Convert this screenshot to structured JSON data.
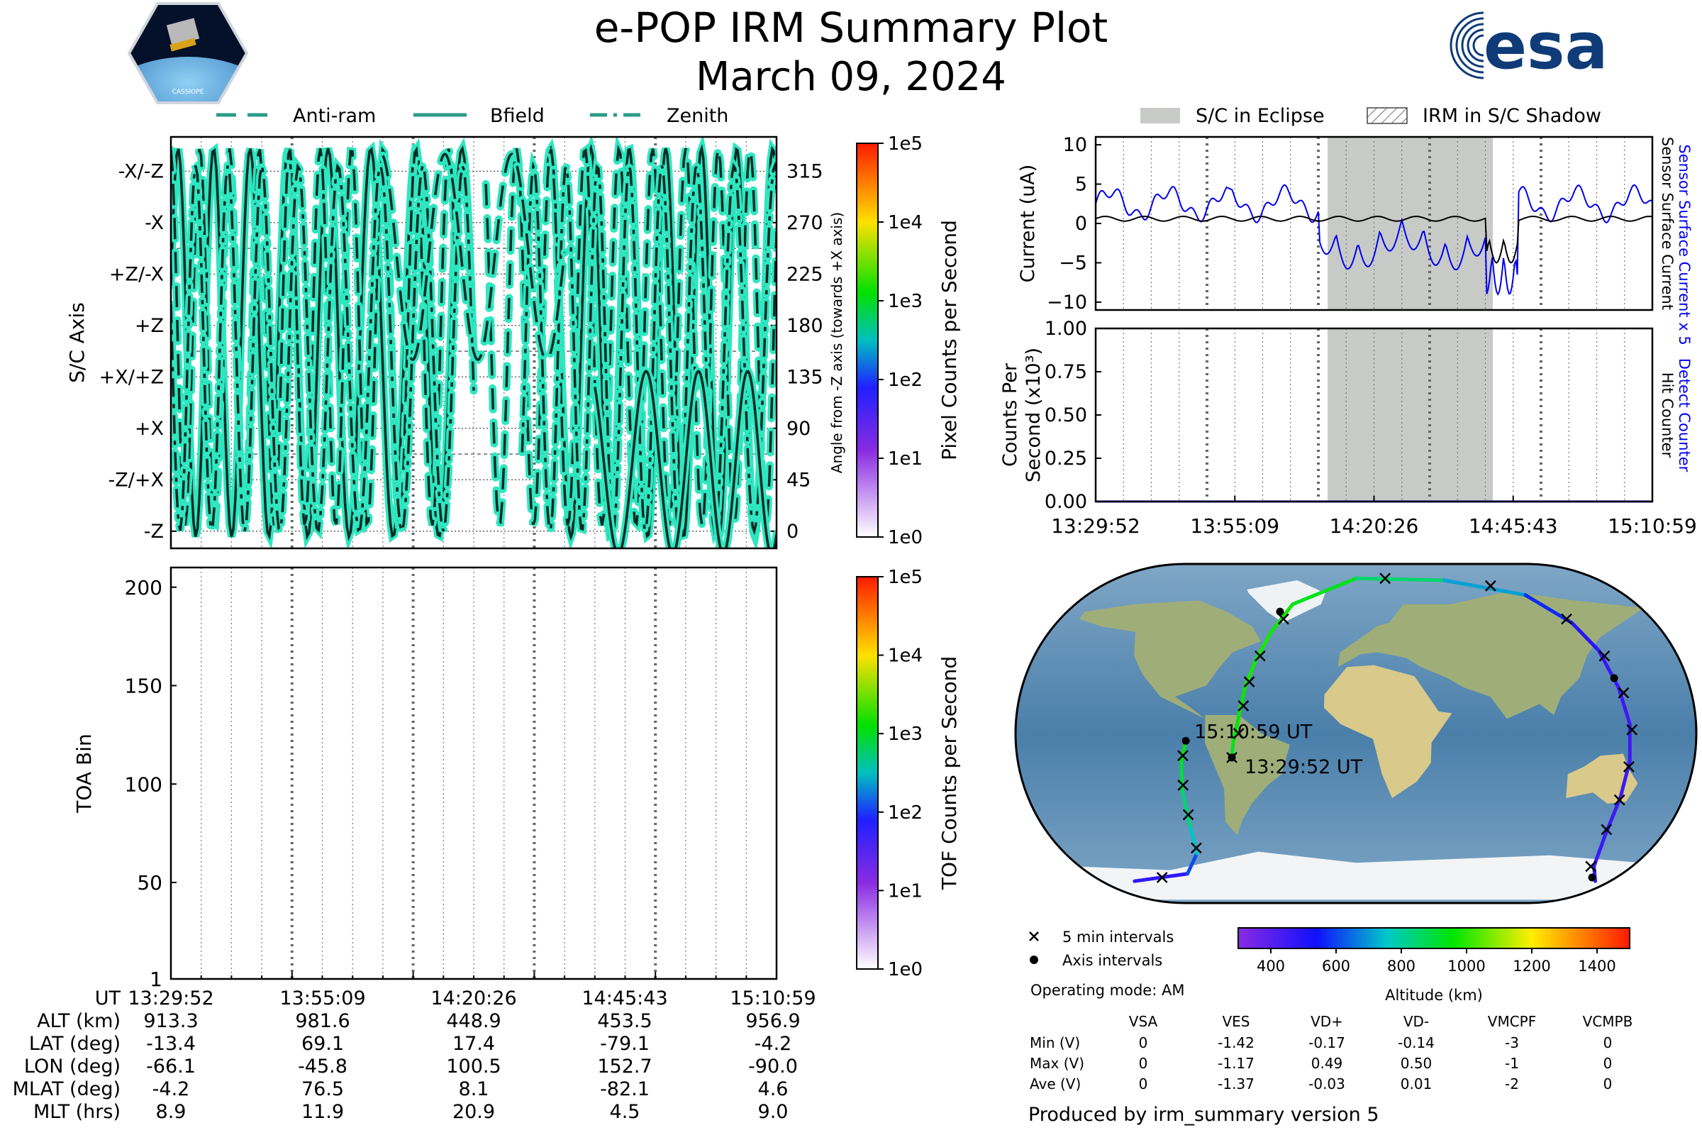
{
  "header": {
    "title": "e-POP IRM Summary Plot",
    "subtitle": "March 09, 2024",
    "left_logo_text": "CASSIOPE",
    "right_logo_text": "esa"
  },
  "colors": {
    "teal": "#2ee6c0",
    "black": "#000000",
    "blue": "#0000ee",
    "eclipse_gray": "#c8cac8",
    "grid": "#555555"
  },
  "legend_top_left": [
    {
      "label": "Anti-ram",
      "style": "dashed"
    },
    {
      "label": "Bfield",
      "style": "solid"
    },
    {
      "label": "Zenith",
      "style": "dashdot"
    }
  ],
  "legend_top_right": [
    {
      "label": "S/C in Eclipse",
      "style": "gray-fill"
    },
    {
      "label": "IRM in S/C Shadow",
      "style": "hatch"
    }
  ],
  "chart_data": [
    {
      "id": "attitude",
      "type": "line",
      "title": "",
      "ylabel": "S/C Axis",
      "y_right_label": "Angle from -Z axis (towards +X axis)",
      "left_ticks": [
        "-X/-Z",
        "-X",
        "+Z/-X",
        "+Z",
        "+X/+Z",
        "+X",
        "-Z/+X",
        "-Z"
      ],
      "right_ticks": [
        "315",
        "270",
        "225",
        "180",
        "135",
        "90",
        "45",
        "0"
      ],
      "ylim": [
        -15,
        345
      ],
      "series": [
        {
          "name": "Anti-ram",
          "style": "dashed"
        },
        {
          "name": "Bfield",
          "style": "solid"
        },
        {
          "name": "Zenith",
          "style": "dashdot"
        }
      ],
      "colorbar": {
        "label": "Pixel Counts per Second",
        "ticks": [
          "1e5",
          "1e4",
          "1e3",
          "1e2",
          "1e1",
          "1e0"
        ]
      }
    },
    {
      "id": "current",
      "type": "line",
      "ylabel": "Current (uA)",
      "ylim": [
        -11,
        11
      ],
      "y_ticks": [
        "10",
        "5",
        "0",
        "−5",
        "−10"
      ],
      "right_label_blue": "Sensor Surface Current x 5",
      "right_label_black": "Sensor Surface Current",
      "series": [
        {
          "name": "Sensor Surface Current x 5",
          "color": "#0000ee"
        },
        {
          "name": "Sensor Surface Current",
          "color": "#000000"
        }
      ],
      "eclipse_span": [
        "14:12",
        "14:42"
      ]
    },
    {
      "id": "counts",
      "type": "line",
      "ylabel_line1": "Counts Per",
      "ylabel_line2": "Second (x10³)",
      "ylim": [
        0,
        1
      ],
      "y_ticks": [
        "1.00",
        "0.75",
        "0.50",
        "0.25",
        "0.00"
      ],
      "right_label_blue": "Detect Counter",
      "right_label_black": "Hit Counter",
      "x_ticks": [
        "13:29:52",
        "13:55:09",
        "14:20:26",
        "14:45:43",
        "15:10:59"
      ],
      "series": [
        {
          "name": "Detect Counter",
          "color": "#0000ee",
          "values": [
            0,
            0,
            0,
            0,
            0
          ]
        }
      ]
    },
    {
      "id": "toa",
      "type": "heatmap",
      "ylabel": "TOA Bin",
      "ylim": [
        1,
        210
      ],
      "y_ticks": [
        "200",
        "150",
        "100",
        "50",
        "1"
      ],
      "colorbar": {
        "label": "TOF Counts per Second",
        "ticks": [
          "1e5",
          "1e4",
          "1e3",
          "1e2",
          "1e1",
          "1e0"
        ]
      }
    },
    {
      "id": "orbit-map",
      "type": "scatter",
      "start_label": "13:29:52 UT",
      "end_label": "15:10:59 UT",
      "altitude_colorbar": {
        "label": "Altitude (km)",
        "ticks": [
          "400",
          "600",
          "800",
          "1000",
          "1200",
          "1400"
        ],
        "range": [
          300,
          1500
        ]
      },
      "legend": [
        {
          "label": "5 min intervals",
          "marker": "x"
        },
        {
          "label": "Axis intervals",
          "marker": "dot"
        }
      ]
    }
  ],
  "ephemeris": {
    "labels": [
      "UT",
      "ALT (km)",
      "LAT (deg)",
      "LON (deg)",
      "MLAT (deg)",
      "MLT (hrs)"
    ],
    "columns": [
      [
        "13:29:52",
        "913.3",
        "-13.4",
        "-66.1",
        "-4.2",
        "8.9"
      ],
      [
        "13:55:09",
        "981.6",
        "69.1",
        "-45.8",
        "76.5",
        "11.9"
      ],
      [
        "14:20:26",
        "448.9",
        "17.4",
        "100.5",
        "8.1",
        "20.9"
      ],
      [
        "14:45:43",
        "453.5",
        "-79.1",
        "152.7",
        "-82.1",
        "4.5"
      ],
      [
        "15:10:59",
        "956.9",
        "-4.2",
        "-90.0",
        "4.6",
        "9.0"
      ]
    ]
  },
  "operating_mode": "Operating mode: AM",
  "voltages": {
    "headers": [
      "VSA",
      "VES",
      "VD+",
      "VD-",
      "VMCPF",
      "VCMPB"
    ],
    "rows": [
      {
        "label": "Min (V)",
        "values": [
          "0",
          "-1.42",
          "-0.17",
          "-0.14",
          "-3",
          "0"
        ]
      },
      {
        "label": "Max (V)",
        "values": [
          "0",
          "-1.17",
          "0.49",
          "0.50",
          "-1",
          "0"
        ]
      },
      {
        "label": "Ave (V)",
        "values": [
          "0",
          "-1.37",
          "-0.03",
          "0.01",
          "-2",
          "0"
        ]
      }
    ]
  },
  "footer": "Produced by irm_summary version 5"
}
